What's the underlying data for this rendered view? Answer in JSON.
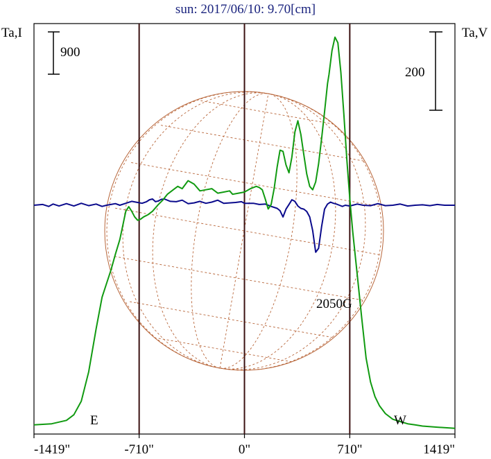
{
  "chart_data": {
    "type": "line",
    "title": "sun: 2017/06/10: 9.70[cm]",
    "left_axis_label": "Ta,I",
    "right_axis_label": "Ta,V",
    "left_scale_bar": "900",
    "right_scale_bar": "200",
    "xticks": [
      "-1419\"",
      "-710\"",
      "0\"",
      "710\"",
      "1419\""
    ],
    "xtick_values": [
      -1419,
      -710,
      0,
      710,
      1419
    ],
    "xlim": [
      -1419,
      1419
    ],
    "limb_markers": [
      {
        "label": "E",
        "x": -710
      },
      {
        "label": "W",
        "x": 710
      }
    ],
    "annotations": [
      {
        "text": "2050G",
        "x": 480
      }
    ],
    "colors": {
      "stokes_i": "#109a10",
      "stokes_v": "#0a0a8c",
      "grid": "#b8663a",
      "markers": "#3a1010",
      "title": "#1a237e"
    },
    "series": [
      {
        "key": "stokes_i",
        "x": [
          -1419,
          -1300,
          -1200,
          -1150,
          -1100,
          -1050,
          -1000,
          -960,
          -930,
          -900,
          -870,
          -840,
          -800,
          -780,
          -760,
          -740,
          -720,
          -700,
          -680,
          -650,
          -620,
          -580,
          -550,
          -520,
          -480,
          -450,
          -420,
          -380,
          -340,
          -300,
          -260,
          -220,
          -180,
          -140,
          -100,
          -80,
          -40,
          0,
          40,
          80,
          100,
          120,
          140,
          160,
          180,
          200,
          220,
          240,
          260,
          280,
          300,
          320,
          340,
          360,
          380,
          400,
          420,
          440,
          460,
          480,
          500,
          520,
          540,
          560,
          570,
          590,
          610,
          630,
          650,
          670,
          690,
          710,
          730,
          760,
          790,
          820,
          850,
          880,
          910,
          950,
          1000,
          1050,
          1100,
          1150,
          1200,
          1300,
          1419
        ],
        "y": [
          50,
          60,
          90,
          140,
          260,
          520,
          900,
          1180,
          1300,
          1420,
          1560,
          1690,
          1940,
          1980,
          1940,
          1890,
          1860,
          1870,
          1890,
          1910,
          1940,
          2000,
          2040,
          2090,
          2130,
          2160,
          2140,
          2210,
          2180,
          2120,
          2130,
          2140,
          2100,
          2110,
          2120,
          2090,
          2100,
          2110,
          2140,
          2160,
          2150,
          2130,
          2050,
          1960,
          2000,
          2140,
          2330,
          2480,
          2470,
          2350,
          2280,
          2420,
          2640,
          2740,
          2620,
          2440,
          2270,
          2160,
          2130,
          2200,
          2360,
          2580,
          2820,
          3070,
          3150,
          3360,
          3480,
          3430,
          3170,
          2800,
          2400,
          2050,
          1760,
          1380,
          1000,
          640,
          430,
          300,
          220,
          150,
          100,
          80,
          60,
          50,
          40,
          30,
          20
        ],
        "ylim": [
          0,
          3600
        ]
      },
      {
        "key": "stokes_v",
        "x": [
          -1419,
          -1360,
          -1320,
          -1290,
          -1250,
          -1200,
          -1150,
          -1100,
          -1050,
          -1000,
          -960,
          -930,
          -900,
          -870,
          -840,
          -800,
          -760,
          -720,
          -690,
          -660,
          -640,
          -620,
          -600,
          -580,
          -560,
          -540,
          -500,
          -460,
          -420,
          -380,
          -340,
          -300,
          -260,
          -220,
          -180,
          -140,
          -100,
          -60,
          -20,
          0,
          20,
          60,
          100,
          140,
          180,
          220,
          240,
          260,
          280,
          300,
          320,
          340,
          360,
          380,
          400,
          420,
          440,
          460,
          480,
          500,
          520,
          540,
          560,
          580,
          600,
          620,
          640,
          660,
          680,
          710,
          760,
          800,
          850,
          900,
          950,
          1000,
          1050,
          1100,
          1150,
          1200,
          1250,
          1300,
          1350,
          1419
        ],
        "y": [
          0,
          2,
          -3,
          3,
          -2,
          4,
          -2,
          5,
          -1,
          3,
          -3,
          0,
          2,
          4,
          0,
          5,
          10,
          7,
          5,
          9,
          14,
          16,
          9,
          11,
          15,
          16,
          10,
          9,
          13,
          4,
          6,
          10,
          5,
          8,
          13,
          5,
          6,
          7,
          9,
          5,
          5,
          5,
          2,
          3,
          -3,
          -8,
          -14,
          -30,
          -10,
          2,
          14,
          10,
          -2,
          -8,
          -10,
          -16,
          -30,
          -65,
          -120,
          -110,
          -55,
          -10,
          3,
          8,
          5,
          3,
          0,
          -3,
          0,
          -2,
          3,
          0,
          -1,
          4,
          -1,
          0,
          3,
          -2,
          0,
          1,
          -1,
          2,
          0,
          0
        ],
        "ylim": [
          -800,
          800
        ]
      }
    ]
  }
}
